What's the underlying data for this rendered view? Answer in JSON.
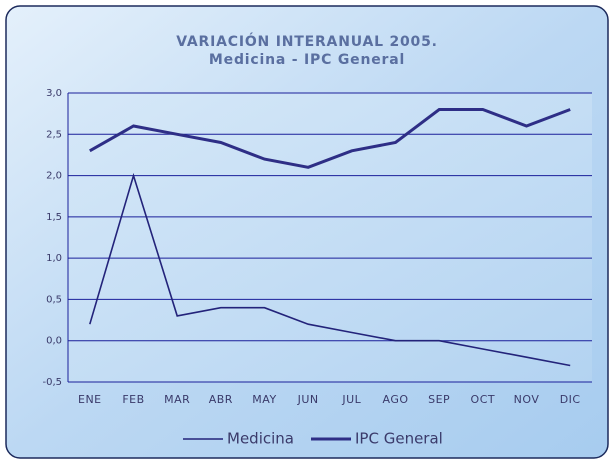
{
  "chart_data": {
    "type": "line",
    "title": "VARIACIÓN INTERANUAL 2005.",
    "subtitle": "Medicina - IPC General",
    "categories": [
      "ENE",
      "FEB",
      "MAR",
      "ABR",
      "MAY",
      "JUN",
      "JUL",
      "AGO",
      "SEP",
      "OCT",
      "NOV",
      "DIC"
    ],
    "series": [
      {
        "name": "Medicina",
        "color": "#23237a",
        "values": [
          0.2,
          2.0,
          0.3,
          0.4,
          0.4,
          0.2,
          0.1,
          0.0,
          0.0,
          -0.1,
          -0.2,
          -0.3
        ]
      },
      {
        "name": "IPC General",
        "color": "#2e2e86",
        "values": [
          2.3,
          2.6,
          2.5,
          2.4,
          2.2,
          2.1,
          2.3,
          2.4,
          2.8,
          2.8,
          2.6,
          2.8
        ]
      }
    ],
    "ylim": [
      -0.5,
      3.0
    ],
    "yticks": [
      {
        "value": -0.5,
        "label": "-0,5"
      },
      {
        "value": 0,
        "label": "0,0"
      },
      {
        "value": 0.5,
        "label": "0,5"
      },
      {
        "value": 1.0,
        "label": "1,0"
      },
      {
        "value": 1.5,
        "label": "1,5"
      },
      {
        "value": 2.0,
        "label": "2,0"
      },
      {
        "value": 2.5,
        "label": "2,5"
      },
      {
        "value": 3.0,
        "label": "3,0"
      }
    ],
    "grid": true,
    "legend": "bottom"
  }
}
